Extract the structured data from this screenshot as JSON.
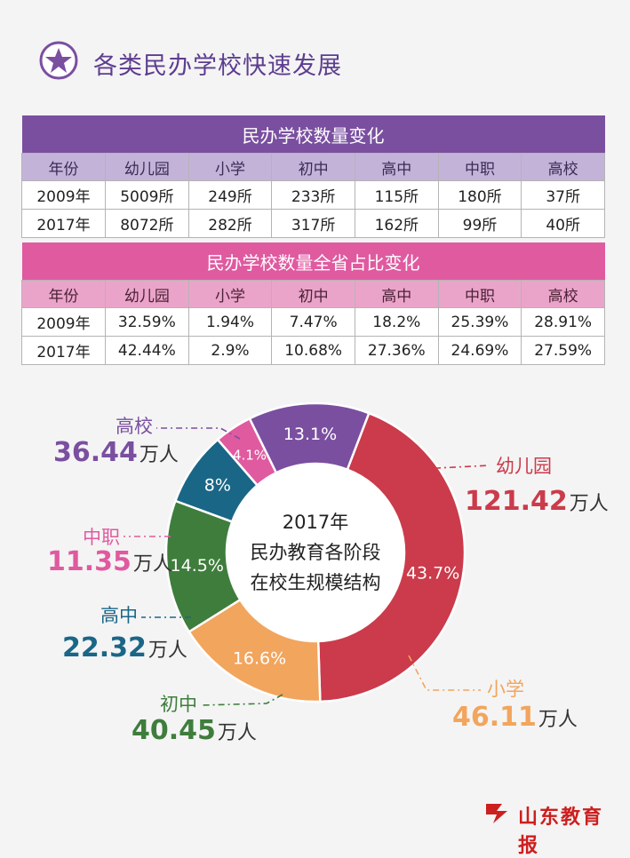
{
  "page": {
    "title": "各类民办学校快速发展"
  },
  "table1": {
    "caption": "民办学校数量变化",
    "headers": [
      "年份",
      "幼儿园",
      "小学",
      "初中",
      "高中",
      "中职",
      "高校"
    ],
    "rows": [
      [
        "2009年",
        "5009所",
        "249所",
        "233所",
        "115所",
        "180所",
        "37所"
      ],
      [
        "2017年",
        "8072所",
        "282所",
        "317所",
        "162所",
        "99所",
        "40所"
      ]
    ]
  },
  "table2": {
    "caption": "民办学校数量全省占比变化",
    "headers": [
      "年份",
      "幼儿园",
      "小学",
      "初中",
      "高中",
      "中职",
      "高校"
    ],
    "rows": [
      [
        "2009年",
        "32.59%",
        "1.94%",
        "7.47%",
        "18.2%",
        "25.39%",
        "28.91%"
      ],
      [
        "2017年",
        "42.44%",
        "2.9%",
        "10.68%",
        "27.36%",
        "24.69%",
        "27.59%"
      ]
    ]
  },
  "chart_data": {
    "type": "pie",
    "donut": true,
    "center_text": [
      "2017年",
      "民办教育各阶段",
      "在校生规模结构"
    ],
    "unit": "万人",
    "slices": [
      {
        "label": "幼儿园",
        "value": 121.42,
        "value_text": "121.42",
        "percent": "43.7%",
        "color": "#cb3b4b"
      },
      {
        "label": "小学",
        "value": 46.11,
        "value_text": "46.11",
        "percent": "16.6%",
        "color": "#f2a55d"
      },
      {
        "label": "初中",
        "value": 40.45,
        "value_text": "40.45",
        "percent": "14.5%",
        "color": "#3f7d3c"
      },
      {
        "label": "高中",
        "value": 22.32,
        "value_text": "22.32",
        "percent": "8%",
        "color": "#1a6687"
      },
      {
        "label": "中职",
        "value": 11.35,
        "value_text": "11.35",
        "percent": "4.1%",
        "color": "#e05aa0"
      },
      {
        "label": "高校",
        "value": 36.44,
        "value_text": "36.44",
        "percent": "13.1%",
        "color": "#7a4fa0"
      }
    ]
  },
  "logo": {
    "text": "山东教育报",
    "color": "#cc1f1f"
  }
}
